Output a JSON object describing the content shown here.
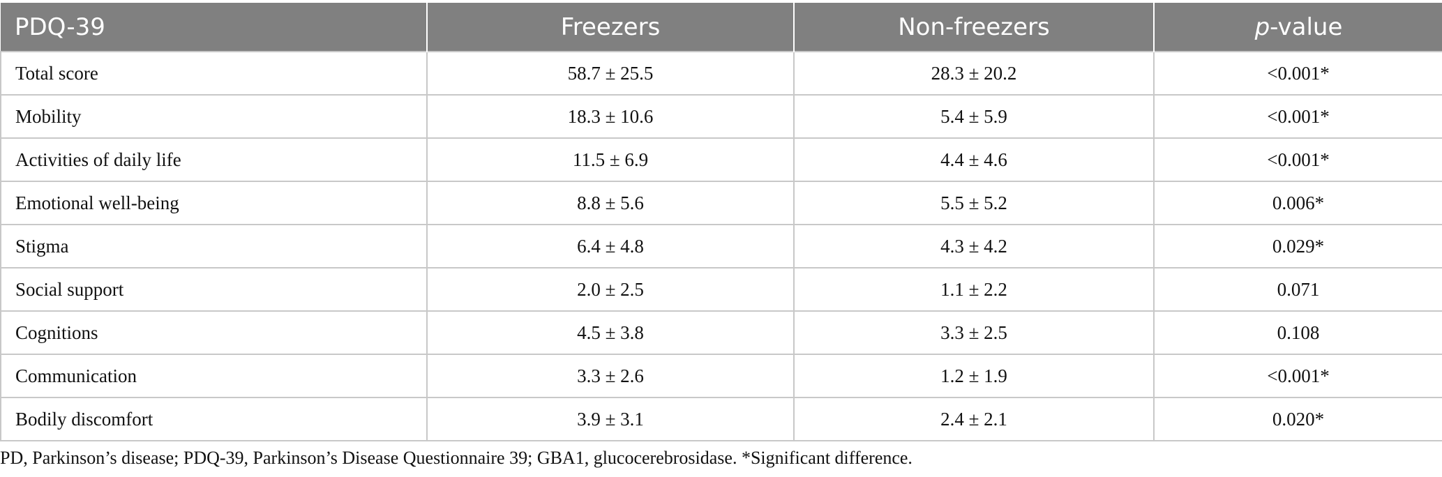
{
  "table": {
    "headers": {
      "col1": "PDQ-39",
      "col2": "Freezers",
      "col3": "Non-freezers",
      "col4_italic": "p",
      "col4_rest": "-value"
    },
    "rows": [
      [
        "Total score",
        "58.7 ± 25.5",
        "28.3 ± 20.2",
        "<0.001*"
      ],
      [
        "Mobility",
        "18.3 ± 10.6",
        "5.4 ± 5.9",
        "<0.001*"
      ],
      [
        "Activities of daily life",
        "11.5 ± 6.9",
        "4.4 ± 4.6",
        "<0.001*"
      ],
      [
        "Emotional well-being",
        "8.8 ± 5.6",
        "5.5 ± 5.2",
        "0.006*"
      ],
      [
        "Stigma",
        "6.4 ± 4.8",
        "4.3 ± 4.2",
        "0.029*"
      ],
      [
        "Social support",
        "2.0 ± 2.5",
        "1.1 ± 2.2",
        "0.071"
      ],
      [
        "Cognitions",
        "4.5 ± 3.8",
        "3.3 ± 2.5",
        "0.108"
      ],
      [
        "Communication",
        "3.3 ± 2.6",
        "1.2 ± 1.9",
        "<0.001*"
      ],
      [
        "Bodily discomfort",
        "3.9 ± 3.1",
        "2.4 ± 2.1",
        "0.020*"
      ]
    ]
  },
  "footnote": "PD, Parkinson’s disease; PDQ-39, Parkinson’s Disease Questionnaire 39; GBA1, glucocerebrosidase. *Significant difference.",
  "colors": {
    "header_bg": "#808080",
    "header_text": "#ffffff",
    "grid": "#c8c8c8"
  }
}
